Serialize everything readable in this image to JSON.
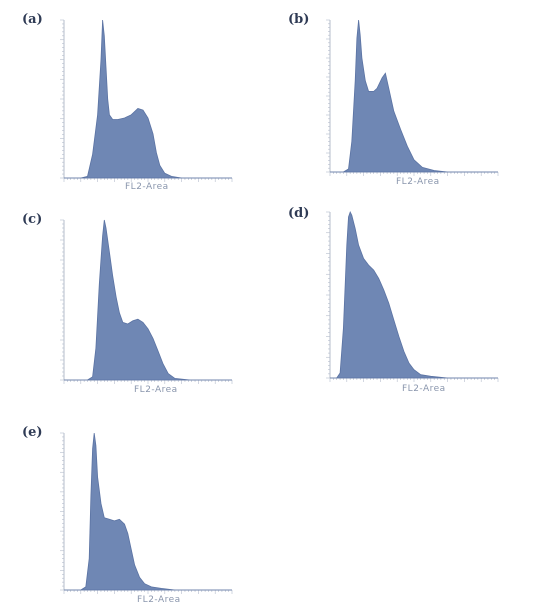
{
  "colors": {
    "fill": "#6f87b4",
    "stroke": "#5b73a3",
    "axis": "#b4bccb"
  },
  "chart_data": [
    {
      "type": "area",
      "panel_label": "(a)",
      "xlabel": "FL2-Area",
      "xlim": [
        0,
        100
      ],
      "ylim": [
        0,
        100
      ],
      "x": [
        0,
        10,
        14,
        17,
        20,
        22,
        23,
        24,
        25,
        26,
        27,
        29,
        32,
        36,
        40,
        44,
        47,
        50,
        53,
        55,
        57,
        60,
        64,
        70,
        80,
        100
      ],
      "values": [
        0,
        0,
        1,
        15,
        40,
        75,
        100,
        90,
        70,
        50,
        40,
        37,
        37,
        38,
        40,
        44,
        43,
        38,
        28,
        16,
        8,
        3,
        1,
        0,
        0,
        0
      ]
    },
    {
      "type": "area",
      "panel_label": "(b)",
      "xlabel": "FL2-Area",
      "xlim": [
        0,
        100
      ],
      "ylim": [
        0,
        100
      ],
      "x": [
        0,
        8,
        11,
        13,
        15,
        16,
        17,
        18,
        19,
        21,
        23,
        26,
        28,
        31,
        33,
        35,
        38,
        42,
        46,
        50,
        55,
        62,
        70,
        100
      ],
      "values": [
        0,
        0,
        2,
        20,
        60,
        88,
        100,
        90,
        75,
        60,
        53,
        53,
        55,
        62,
        65,
        55,
        40,
        28,
        17,
        8,
        3,
        1,
        0,
        0
      ]
    },
    {
      "type": "area",
      "panel_label": "(c)",
      "xlabel": "FL2-Area",
      "xlim": [
        0,
        100
      ],
      "ylim": [
        0,
        100
      ],
      "x": [
        0,
        14,
        17,
        19,
        21,
        23,
        24,
        25,
        27,
        29,
        31,
        33,
        35,
        38,
        41,
        44,
        47,
        50,
        53,
        56,
        59,
        62,
        66,
        75,
        100
      ],
      "values": [
        0,
        0,
        2,
        20,
        60,
        90,
        100,
        95,
        80,
        65,
        52,
        42,
        36,
        35,
        37,
        38,
        36,
        32,
        26,
        18,
        10,
        4,
        1,
        0,
        0
      ]
    },
    {
      "type": "area",
      "panel_label": "(d)",
      "xlabel": "FL2-Area",
      "xlim": [
        0,
        100
      ],
      "ylim": [
        0,
        100
      ],
      "x": [
        0,
        4,
        6,
        8,
        10,
        11,
        12,
        13,
        15,
        17,
        20,
        23,
        26,
        29,
        32,
        35,
        38,
        41,
        44,
        47,
        50,
        54,
        60,
        70,
        100
      ],
      "values": [
        0,
        0,
        3,
        30,
        80,
        97,
        100,
        98,
        90,
        80,
        72,
        68,
        65,
        60,
        53,
        45,
        35,
        25,
        16,
        9,
        5,
        2,
        1,
        0,
        0
      ]
    },
    {
      "type": "area",
      "panel_label": "(e)",
      "xlabel": "FL2-Area",
      "xlim": [
        0,
        100
      ],
      "ylim": [
        0,
        100
      ],
      "x": [
        0,
        10,
        13,
        15,
        16,
        17,
        18,
        19,
        20,
        22,
        24,
        27,
        30,
        33,
        36,
        38,
        40,
        42,
        45,
        48,
        52,
        58,
        66,
        75,
        100
      ],
      "values": [
        0,
        0,
        2,
        20,
        60,
        90,
        100,
        92,
        72,
        55,
        46,
        45,
        44,
        45,
        42,
        36,
        26,
        16,
        8,
        4,
        2,
        1,
        0,
        0,
        0
      ]
    }
  ]
}
